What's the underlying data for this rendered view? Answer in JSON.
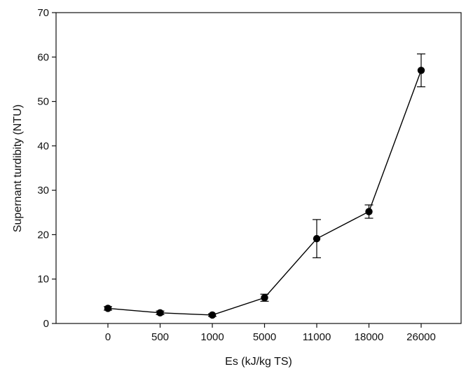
{
  "chart_data": {
    "type": "line",
    "xlabel": "Es (kJ/kg TS)",
    "ylabel": "Supernant turdibity  (NTU)",
    "categories": [
      "0",
      "500",
      "1000",
      "5000",
      "11000",
      "18000",
      "26000"
    ],
    "ylim": [
      0,
      70
    ],
    "yticks": [
      0,
      10,
      20,
      30,
      40,
      50,
      60,
      70
    ],
    "grid": false,
    "series": [
      {
        "values": [
          3.4,
          2.4,
          1.9,
          5.8,
          19.1,
          25.2,
          57.0
        ],
        "error": [
          0.4,
          0.4,
          0.3,
          0.8,
          4.3,
          1.5,
          3.7
        ],
        "color": "#000000",
        "marker": "filled-circle"
      }
    ]
  }
}
